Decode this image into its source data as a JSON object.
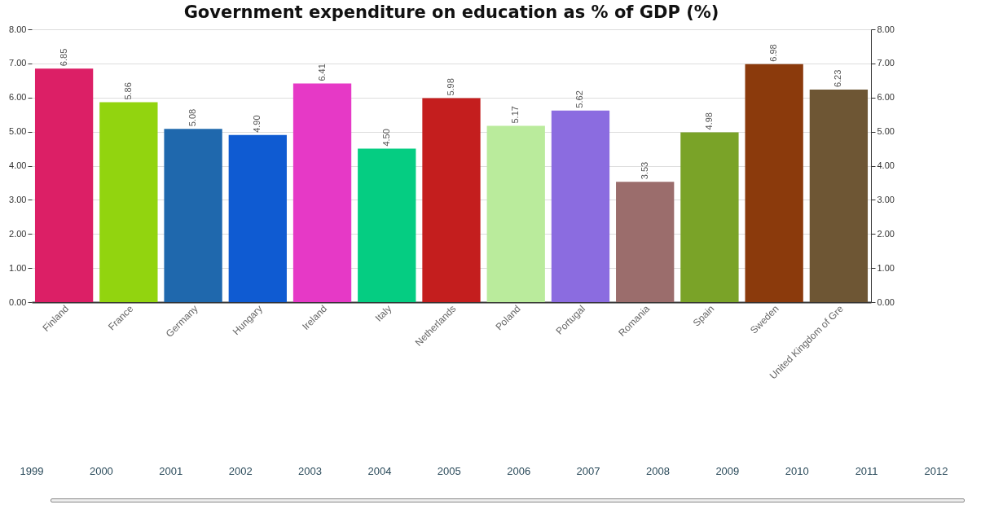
{
  "chart_data": {
    "type": "bar",
    "title": "Government expenditure on education as % of GDP (%)",
    "categories": [
      "Finland",
      "France",
      "Germany",
      "Hungary",
      "Ireland",
      "Italy",
      "Netherlands",
      "Poland",
      "Portugal",
      "Romania",
      "Spain",
      "Sweden",
      "United Kingdom of Gre"
    ],
    "values": [
      6.85,
      5.86,
      5.08,
      4.9,
      6.41,
      4.5,
      5.98,
      5.17,
      5.62,
      3.53,
      4.98,
      6.98,
      6.23
    ],
    "value_labels": [
      "6.85",
      "5.86",
      "5.08",
      "4.90",
      "6.41",
      "4.50",
      "5.98",
      "5.17",
      "5.62",
      "3.53",
      "4.98",
      "6.98",
      "6.23"
    ],
    "colors": [
      "#dc1f66",
      "#92d40f",
      "#1f68ad",
      "#0f5bd2",
      "#e639c6",
      "#05cd82",
      "#c41e1e",
      "#baeb9c",
      "#8b6ce0",
      "#9b6d6c",
      "#7aa328",
      "#8b3a0c",
      "#6e5634"
    ],
    "ylim": [
      0,
      8
    ],
    "yticks": [
      {
        "value": 0,
        "label": "0.00"
      },
      {
        "value": 1,
        "label": "1.00"
      },
      {
        "value": 2,
        "label": "2.00"
      },
      {
        "value": 3,
        "label": "3.00"
      },
      {
        "value": 4,
        "label": "4.00"
      },
      {
        "value": 5,
        "label": "5.00"
      },
      {
        "value": 6,
        "label": "6.00"
      },
      {
        "value": 7,
        "label": "7.00"
      },
      {
        "value": 8,
        "label": "8.00"
      }
    ],
    "y2lim": [
      0,
      8
    ],
    "y2ticks": [
      {
        "value": 0,
        "label": "0.00"
      },
      {
        "value": 1,
        "label": "1.00"
      },
      {
        "value": 2,
        "label": "2.00"
      },
      {
        "value": 3,
        "label": "3.00"
      },
      {
        "value": 4,
        "label": "4.00"
      },
      {
        "value": 5,
        "label": "5.00"
      },
      {
        "value": 6,
        "label": "6.00"
      },
      {
        "value": 7,
        "label": "7.00"
      },
      {
        "value": 8,
        "label": "8.00"
      }
    ],
    "annotations": [
      "1999",
      "2000",
      "2001",
      "2002",
      "2003",
      "2004",
      "2005",
      "2006",
      "2007",
      "2008",
      "2009",
      "2010",
      "2011",
      "2012"
    ],
    "grid": "y",
    "legend": false
  }
}
